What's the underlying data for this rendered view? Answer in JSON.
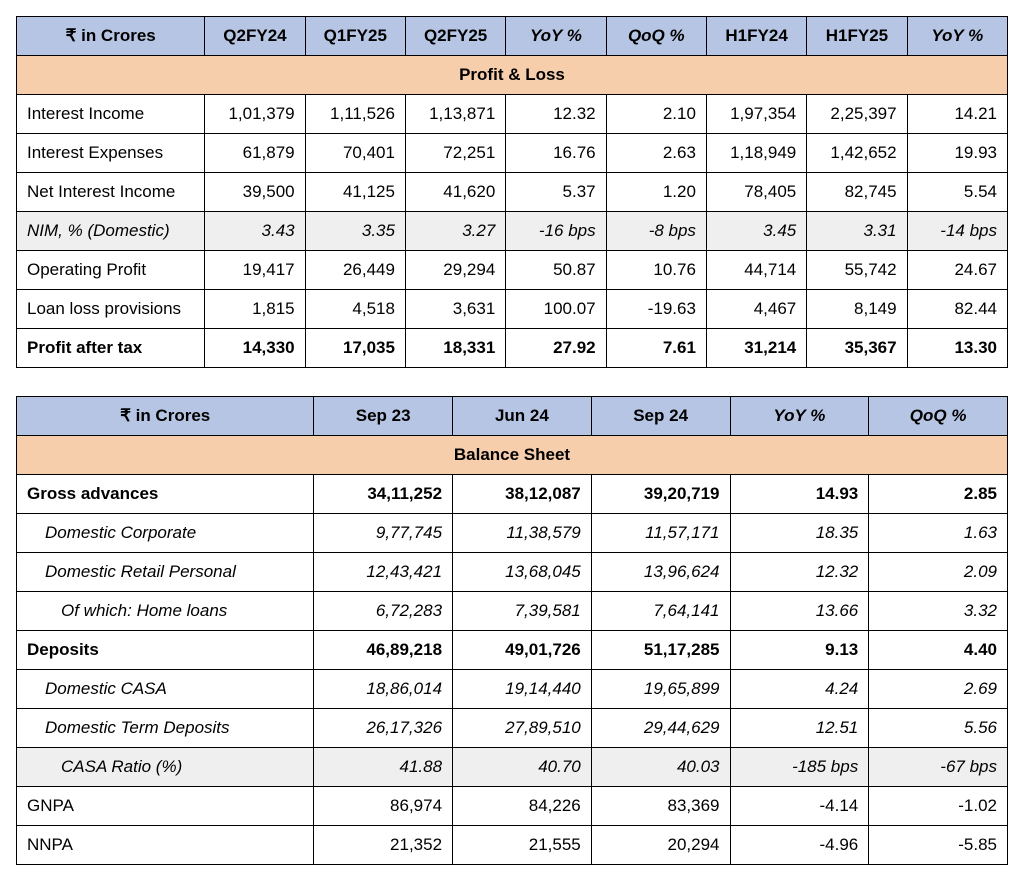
{
  "colors": {
    "header_bg": "#b7c5e4",
    "section_bg": "#f6ceac",
    "shaded_bg": "#efefef",
    "border": "#000000"
  },
  "table1": {
    "headers": [
      "₹ in Crores",
      "Q2FY24",
      "Q1FY25",
      "Q2FY25",
      "YoY %",
      "QoQ %",
      "H1FY24",
      "H1FY25",
      "YoY %"
    ],
    "header_italic": [
      false,
      false,
      false,
      false,
      true,
      true,
      false,
      false,
      true
    ],
    "section_title": "Profit & Loss",
    "rows": [
      {
        "label": "Interest Income",
        "cells": [
          "1,01,379",
          "1,11,526",
          "1,13,871",
          "12.32",
          "2.10",
          "1,97,354",
          "2,25,397",
          "14.21"
        ],
        "style": ""
      },
      {
        "label": "Interest Expenses",
        "cells": [
          "61,879",
          "70,401",
          "72,251",
          "16.76",
          "2.63",
          "1,18,949",
          "1,42,652",
          "19.93"
        ],
        "style": ""
      },
      {
        "label": "Net Interest Income",
        "cells": [
          "39,500",
          "41,125",
          "41,620",
          "5.37",
          "1.20",
          "78,405",
          "82,745",
          "5.54"
        ],
        "style": ""
      },
      {
        "label": "NIM, % (Domestic)",
        "cells": [
          "3.43",
          "3.35",
          "3.27",
          "-16 bps",
          "-8 bps",
          "3.45",
          "3.31",
          "-14 bps"
        ],
        "style": "shaded"
      },
      {
        "label": "Operating Profit",
        "cells": [
          "19,417",
          "26,449",
          "29,294",
          "50.87",
          "10.76",
          "44,714",
          "55,742",
          "24.67"
        ],
        "style": ""
      },
      {
        "label": "Loan loss provisions",
        "cells": [
          "1,815",
          "4,518",
          "3,631",
          "100.07",
          "-19.63",
          "4,467",
          "8,149",
          "82.44"
        ],
        "style": ""
      },
      {
        "label": "Profit after tax",
        "cells": [
          "14,330",
          "17,035",
          "18,331",
          "27.92",
          "7.61",
          "31,214",
          "35,367",
          "13.30"
        ],
        "style": "bold"
      }
    ]
  },
  "table2": {
    "headers": [
      "₹ in Crores",
      "Sep 23",
      "Jun 24",
      "Sep 24",
      "YoY %",
      "QoQ %"
    ],
    "header_italic": [
      false,
      false,
      false,
      false,
      true,
      true
    ],
    "section_title": "Balance Sheet",
    "rows": [
      {
        "label": "Gross advances",
        "indent": 0,
        "cells": [
          "34,11,252",
          "38,12,087",
          "39,20,719",
          "14.93",
          "2.85"
        ],
        "style": "bold"
      },
      {
        "label": "Domestic Corporate",
        "indent": 1,
        "cells": [
          "9,77,745",
          "11,38,579",
          "11,57,171",
          "18.35",
          "1.63"
        ],
        "style": "italic"
      },
      {
        "label": "Domestic Retail Personal",
        "indent": 1,
        "cells": [
          "12,43,421",
          "13,68,045",
          "13,96,624",
          "12.32",
          "2.09"
        ],
        "style": "italic"
      },
      {
        "label": "Of which: Home loans",
        "indent": 2,
        "cells": [
          "6,72,283",
          "7,39,581",
          "7,64,141",
          "13.66",
          "3.32"
        ],
        "style": "italic"
      },
      {
        "label": "Deposits",
        "indent": 0,
        "cells": [
          "46,89,218",
          "49,01,726",
          "51,17,285",
          "9.13",
          "4.40"
        ],
        "style": "bold"
      },
      {
        "label": "Domestic CASA",
        "indent": 1,
        "cells": [
          "18,86,014",
          "19,14,440",
          "19,65,899",
          "4.24",
          "2.69"
        ],
        "style": "italic"
      },
      {
        "label": "Domestic Term Deposits",
        "indent": 1,
        "cells": [
          "26,17,326",
          "27,89,510",
          "29,44,629",
          "12.51",
          "5.56"
        ],
        "style": "italic"
      },
      {
        "label": "CASA Ratio (%)",
        "indent": 2,
        "cells": [
          "41.88",
          "40.70",
          "40.03",
          "-185 bps",
          "-67 bps"
        ],
        "style": "shaded"
      },
      {
        "label": "GNPA",
        "indent": 0,
        "cells": [
          "86,974",
          "84,226",
          "83,369",
          "-4.14",
          "-1.02"
        ],
        "style": ""
      },
      {
        "label": "NNPA",
        "indent": 0,
        "cells": [
          "21,352",
          "21,555",
          "20,294",
          "-4.96",
          "-5.85"
        ],
        "style": ""
      }
    ]
  }
}
